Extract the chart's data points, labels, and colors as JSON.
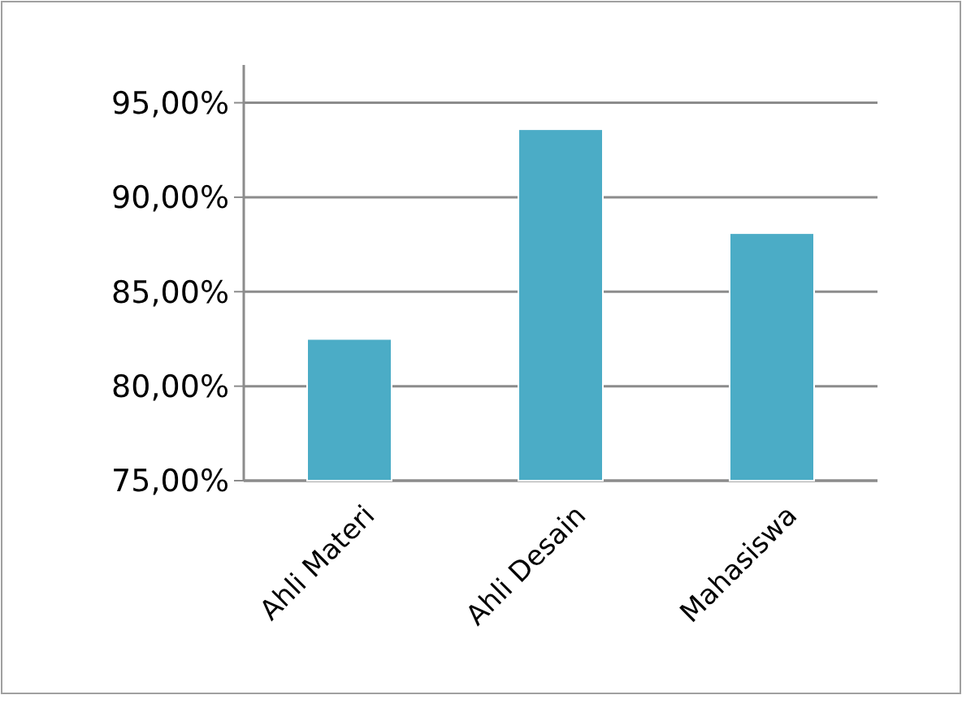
{
  "chart_data": {
    "type": "bar",
    "categories": [
      "Ahli Materi",
      "Ahli Desain",
      "Mahasiswa"
    ],
    "values": [
      82.5,
      93.6,
      88.1
    ],
    "color": "#4bacc6",
    "ylim": [
      75,
      97
    ],
    "yticks": [
      {
        "value": 75,
        "label": "75,00%"
      },
      {
        "value": 80,
        "label": "80,00%"
      },
      {
        "value": 85,
        "label": "85,00%"
      },
      {
        "value": 90,
        "label": "90,00%"
      },
      {
        "value": 95,
        "label": "95,00%"
      }
    ],
    "grid": "y"
  }
}
